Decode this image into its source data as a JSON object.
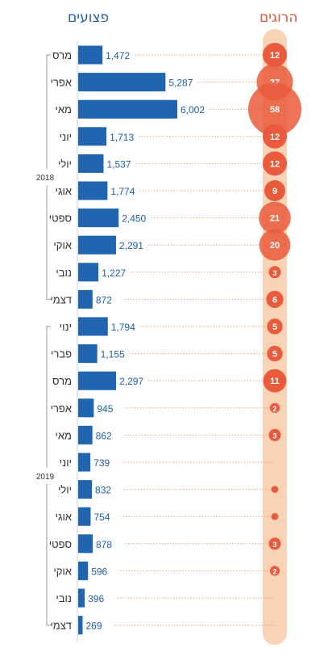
{
  "headers": {
    "wounded": "פצועים",
    "killed": "הרוגים"
  },
  "colors": {
    "bar": "#1f65b0",
    "value_text": "#1f5fa6",
    "month_text": "#333333",
    "circle": "#ea5a3c",
    "band": "#f9d3b6",
    "dotted_line": "#f0a27f",
    "axis": "#999999"
  },
  "chart_data": {
    "type": "bar",
    "series": [
      {
        "name": "פצועים",
        "values": [
          1472,
          5287,
          6002,
          1713,
          1537,
          1774,
          2450,
          2291,
          1227,
          872,
          1794,
          1155,
          2297,
          945,
          862,
          739,
          832,
          754,
          878,
          596,
          396,
          269
        ]
      },
      {
        "name": "הרוגים",
        "values": [
          12,
          27,
          58,
          12,
          12,
          9,
          21,
          20,
          3,
          6,
          5,
          5,
          11,
          2,
          3,
          0,
          1,
          1,
          3,
          2,
          0,
          0
        ]
      }
    ],
    "categories": [
      "מרס",
      "אפרי",
      "מאי",
      "יוני",
      "יולי",
      "אוגי",
      "ספטי",
      "אוקי",
      "נובי",
      "דצמי",
      "ינוי",
      "פברי",
      "מרס",
      "אפרי",
      "מאי",
      "יוני",
      "יולי",
      "אוגי",
      "ספטי",
      "אוקי",
      "נובי",
      "דצמי"
    ],
    "value_labels": [
      "1,472",
      "5,287",
      "6,002",
      "1,713",
      "1,537",
      "1,774",
      "2,450",
      "2,291",
      "1,227",
      "872",
      "1,794",
      "1,155",
      "2,297",
      "945",
      "862",
      "739",
      "832",
      "754",
      "878",
      "596",
      "396",
      "269"
    ],
    "killed_labels": [
      "12",
      "27",
      "58",
      "12",
      "12",
      "9",
      "21",
      "20",
      "3",
      "6",
      "5",
      "5",
      "11",
      "2",
      "3",
      "",
      "",
      "",
      "3",
      "2",
      "",
      ""
    ],
    "years": [
      {
        "label": "2018",
        "start": 0,
        "end": 9
      },
      {
        "label": "2019",
        "start": 10,
        "end": 21
      }
    ],
    "xlim": [
      0,
      6002
    ]
  }
}
